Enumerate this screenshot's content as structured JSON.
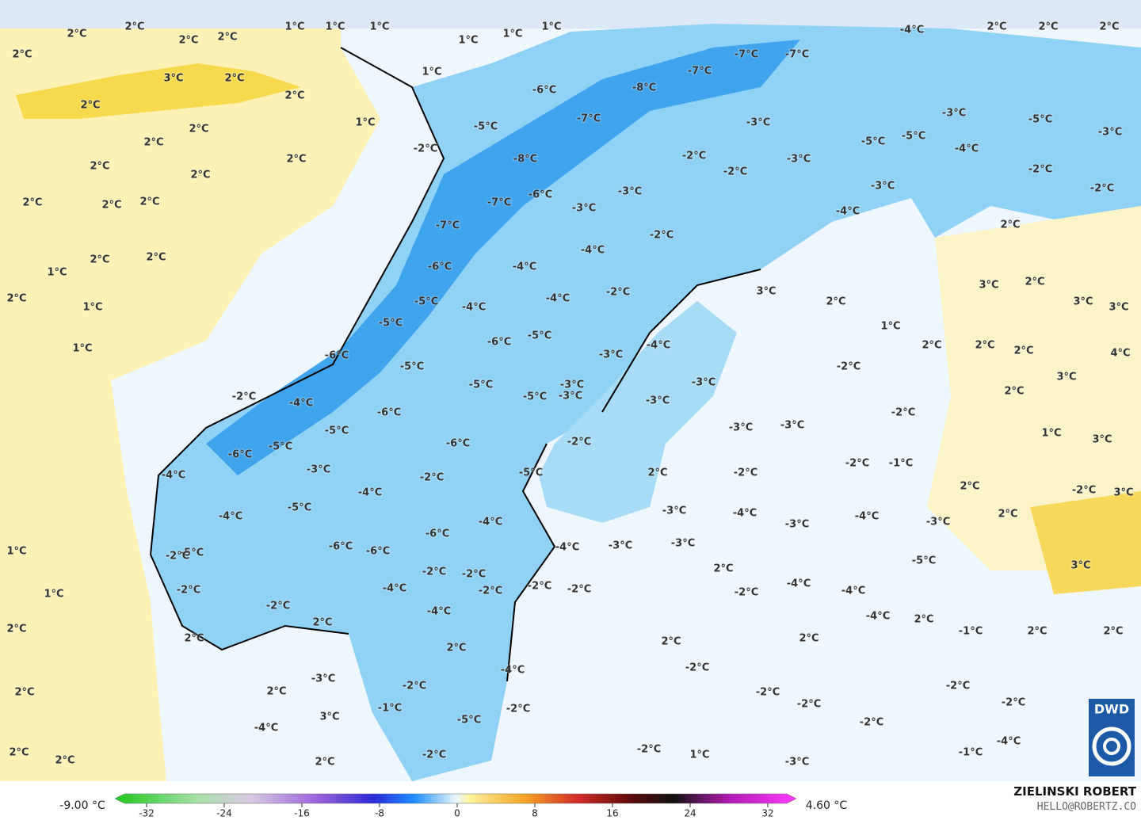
{
  "map": {
    "labels": [
      "2°C",
      "2°C",
      "2°C",
      "2°C",
      "1°C",
      "1°C",
      "1°C",
      "1°C",
      "1°C",
      "1°C",
      "2°C",
      "2°C",
      "2°C",
      "-4°C",
      "2°C",
      "1°C",
      "3°C",
      "2°C",
      "2°C",
      "2°C",
      "1°C",
      "2°C",
      "2°C",
      "2°C",
      "2°C",
      "2°C",
      "2°C",
      "2°C",
      "2°C",
      "2°C",
      "2°C",
      "1°C",
      "2°C",
      "1°C",
      "1°C",
      "1°C",
      "1°C",
      "2°C",
      "2°C",
      "2°C",
      "2°C",
      "-7°C",
      "-7°C",
      "-7°C",
      "-8°C",
      "-6°C",
      "-7°C",
      "-3°C",
      "-3°C",
      "-5°C",
      "-3°C",
      "-5°C",
      "-5°C",
      "-4°C",
      "-5°C",
      "-2°C",
      "-8°C",
      "-2°C",
      "-2°C",
      "-3°C",
      "-2°C",
      "-2°C",
      "-3°C",
      "-6°C",
      "-7°C",
      "-3°C",
      "-3°C",
      "-4°C",
      "2°C",
      "-7°C",
      "-2°C",
      "-4°C",
      "-6°C",
      "-4°C",
      "3°C",
      "2°C",
      "-2°C",
      "-4°C",
      "-4°C",
      "-5°C",
      "3°C",
      "2°C",
      "3°C",
      "3°C",
      "-5°C",
      "1°C",
      "-6°C",
      "-5°C",
      "-4°C",
      "2°C",
      "2°C",
      "2°C",
      "4°C",
      "-6°C",
      "-3°C",
      "-2°C",
      "-5°C",
      "3°C",
      "-3°C",
      "-5°C",
      "-3°C",
      "2°C",
      "-5°C",
      "-2°C",
      "-4°C",
      "-3°C",
      "-6°C",
      "-2°C",
      "-3°C",
      "-3°C",
      "-5°C",
      "1°C",
      "3°C",
      "-6°C",
      "-2°C",
      "-5°C",
      "-6°C",
      "-2°C",
      "-1°C",
      "-3°C",
      "-5°C",
      "-2°C",
      "2°C",
      "-2°C",
      "-4°C",
      "2°C",
      "-2°C",
      "3°C",
      "-4°C",
      "-5°C",
      "-3°C",
      "-4°C",
      "2°C",
      "-4°C",
      "-4°C",
      "-3°C",
      "-4°C",
      "-6°C",
      "-3°C",
      "-6°C",
      "-6°C",
      "-3°C",
      "-3°C",
      "-4°C",
      "-5°C",
      "-2°C",
      "-5°C",
      "3°C",
      "2°C",
      "-2°C",
      "-2°C",
      "-4°C",
      "-2°C",
      "-4°C",
      "-2°C",
      "-2°C",
      "-2°C",
      "-2°C",
      "-4°C",
      "-2°C",
      "-4°C",
      "-4°C",
      "2°C",
      "2°C",
      "-1°C",
      "2°C",
      "2°C",
      "2°C",
      "2°C",
      "2°C",
      "2°C",
      "-2°C",
      "-3°C",
      "-4°C",
      "-2°C",
      "2°C",
      "-2°C",
      "-2°C",
      "-2°C",
      "-2°C",
      "-2°C",
      "-1°C",
      "3°C",
      "-5°C",
      "-4°C",
      "-2°C",
      "-2°C",
      "1°C",
      "-2°C",
      "-4°C",
      "-1°C",
      "2°C",
      "-3°C",
      "-3°C"
    ]
  },
  "colorbar": {
    "min_label": "-9.00 °C",
    "max_label": "4.60 °C",
    "ticks": [
      -32,
      -24,
      -16,
      -8,
      0,
      8,
      16,
      24,
      32
    ]
  },
  "credit": {
    "name": "ZIELINSKI ROBERT",
    "email": "HELLO@ROBERTZ.CO",
    "logo": "DWD"
  }
}
